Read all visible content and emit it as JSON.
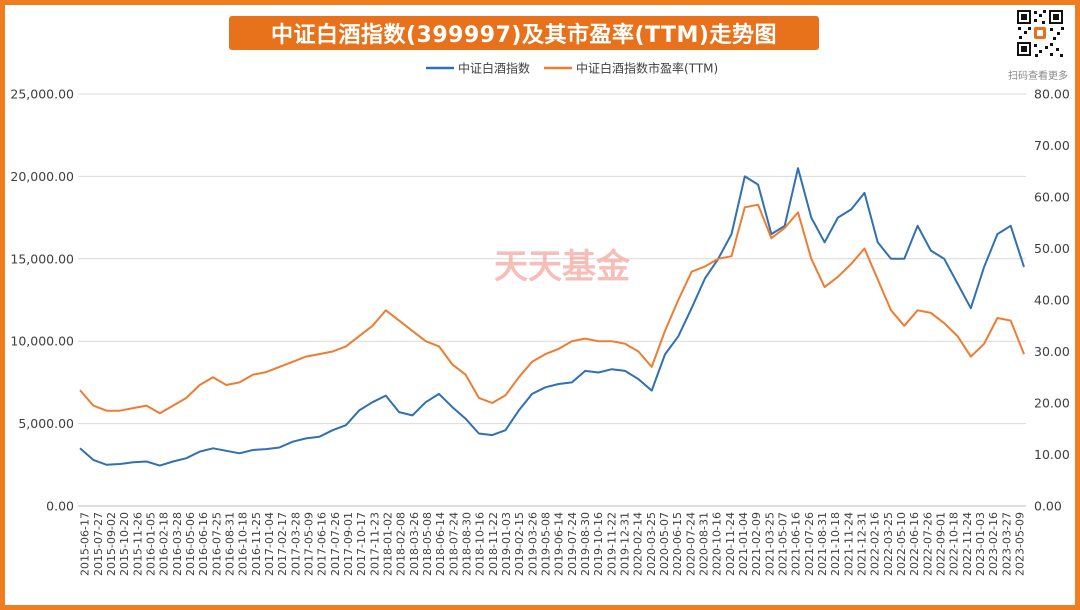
{
  "title": "中证白酒指数(399997)及其市盈率(TTM)走势图",
  "watermark": "天天基金",
  "qr": {
    "caption": "扫码查看更多",
    "icon": "qr-code-icon"
  },
  "colors": {
    "frame": "#f07e21",
    "banner": "#e8711c",
    "series1": "#3070b3",
    "series2": "#ee7d31",
    "grid": "#d9d9d9"
  },
  "chart_data": {
    "type": "line",
    "title": "中证白酒指数(399997)及其市盈率(TTM)走势图",
    "legend_position": "top",
    "grid": true,
    "x_tick_labels": [
      "2015-06-17",
      "2015-07-27",
      "2015-09-02",
      "2015-10-20",
      "2015-11-26",
      "2016-01-05",
      "2016-02-18",
      "2016-03-28",
      "2016-05-06",
      "2016-06-16",
      "2016-07-25",
      "2016-08-31",
      "2016-10-18",
      "2016-11-25",
      "2017-01-04",
      "2017-02-17",
      "2017-03-28",
      "2017-05-09",
      "2017-06-16",
      "2017-07-26",
      "2017-09-01",
      "2017-10-17",
      "2017-11-23",
      "2018-01-02",
      "2018-02-08",
      "2018-03-26",
      "2018-05-08",
      "2018-06-14",
      "2018-07-24",
      "2018-08-30",
      "2018-10-16",
      "2018-11-22",
      "2019-01-03",
      "2019-02-15",
      "2019-03-26",
      "2019-05-08",
      "2019-06-14",
      "2019-07-24",
      "2019-08-30",
      "2019-10-16",
      "2019-11-22",
      "2019-12-31",
      "2020-02-14",
      "2020-03-25",
      "2020-05-07",
      "2020-06-15",
      "2020-07-24",
      "2020-08-31",
      "2020-10-16",
      "2020-11-24",
      "2021-01-04",
      "2021-02-09",
      "2021-03-25",
      "2021-05-07",
      "2021-06-16",
      "2021-07-26",
      "2021-08-31",
      "2021-10-18",
      "2021-11-24",
      "2021-12-31",
      "2022-02-16",
      "2022-03-25",
      "2022-05-10",
      "2022-06-16",
      "2022-07-26",
      "2022-09-01",
      "2022-10-18",
      "2022-11-24",
      "2023-01-03",
      "2023-02-16",
      "2023-03-27",
      "2023-05-09"
    ],
    "y_left": {
      "ylim": [
        0,
        25000
      ],
      "ticks": [
        "0.00",
        "5,000.00",
        "10,000.00",
        "15,000.00",
        "20,000.00",
        "25,000.00"
      ]
    },
    "y_right": {
      "ylim": [
        0,
        80
      ],
      "ticks": [
        "0.00",
        "10.00",
        "20.00",
        "30.00",
        "40.00",
        "50.00",
        "60.00",
        "70.00",
        "80.00"
      ]
    },
    "series": [
      {
        "name": "中证白酒指数",
        "axis": "left",
        "x": [
          "2015-06-17",
          "2015-07-27",
          "2015-09-02",
          "2015-10-20",
          "2015-11-26",
          "2016-01-05",
          "2016-02-18",
          "2016-03-28",
          "2016-05-06",
          "2016-06-16",
          "2016-07-25",
          "2016-08-31",
          "2016-10-18",
          "2016-11-25",
          "2017-01-04",
          "2017-02-17",
          "2017-03-28",
          "2017-05-09",
          "2017-06-16",
          "2017-07-26",
          "2017-09-01",
          "2017-10-17",
          "2017-11-23",
          "2018-01-02",
          "2018-02-08",
          "2018-03-26",
          "2018-05-08",
          "2018-06-14",
          "2018-07-24",
          "2018-08-30",
          "2018-10-16",
          "2018-11-22",
          "2019-01-03",
          "2019-02-15",
          "2019-03-26",
          "2019-05-08",
          "2019-06-14",
          "2019-07-24",
          "2019-08-30",
          "2019-10-16",
          "2019-11-22",
          "2019-12-31",
          "2020-02-14",
          "2020-03-25",
          "2020-05-07",
          "2020-06-15",
          "2020-07-24",
          "2020-08-31",
          "2020-10-16",
          "2020-11-24",
          "2021-01-04",
          "2021-02-09",
          "2021-03-25",
          "2021-05-07",
          "2021-06-16",
          "2021-07-26",
          "2021-08-31",
          "2021-10-18",
          "2021-11-24",
          "2021-12-31",
          "2022-02-16",
          "2022-03-25",
          "2022-05-10",
          "2022-06-16",
          "2022-07-26",
          "2022-09-01",
          "2022-10-18",
          "2022-11-24",
          "2023-01-03",
          "2023-02-16",
          "2023-03-27",
          "2023-05-09"
        ],
        "values": [
          3500,
          2800,
          2500,
          2550,
          2650,
          2700,
          2450,
          2700,
          2900,
          3300,
          3500,
          3350,
          3200,
          3400,
          3450,
          3550,
          3900,
          4100,
          4200,
          4600,
          4900,
          5800,
          6300,
          6700,
          5700,
          5500,
          6300,
          6800,
          6000,
          5300,
          4400,
          4300,
          4600,
          5800,
          6800,
          7200,
          7400,
          7500,
          8200,
          8100,
          8300,
          8200,
          7700,
          7000,
          9200,
          10300,
          12000,
          13800,
          15000,
          16500,
          20000,
          19500,
          16500,
          17000,
          20500,
          17500,
          16000,
          17500,
          18000,
          19000,
          16000,
          15000,
          15000,
          17000,
          15500,
          15000,
          13500,
          12000,
          14500,
          16500,
          17000,
          14500
        ]
      },
      {
        "name": "中证白酒指数市盈率(TTM)",
        "axis": "right",
        "x": [
          "2015-06-17",
          "2015-07-27",
          "2015-09-02",
          "2015-10-20",
          "2015-11-26",
          "2016-01-05",
          "2016-02-18",
          "2016-03-28",
          "2016-05-06",
          "2016-06-16",
          "2016-07-25",
          "2016-08-31",
          "2016-10-18",
          "2016-11-25",
          "2017-01-04",
          "2017-02-17",
          "2017-03-28",
          "2017-05-09",
          "2017-06-16",
          "2017-07-26",
          "2017-09-01",
          "2017-10-17",
          "2017-11-23",
          "2018-01-02",
          "2018-02-08",
          "2018-03-26",
          "2018-05-08",
          "2018-06-14",
          "2018-07-24",
          "2018-08-30",
          "2018-10-16",
          "2018-11-22",
          "2019-01-03",
          "2019-02-15",
          "2019-03-26",
          "2019-05-08",
          "2019-06-14",
          "2019-07-24",
          "2019-08-30",
          "2019-10-16",
          "2019-11-22",
          "2019-12-31",
          "2020-02-14",
          "2020-03-25",
          "2020-05-07",
          "2020-06-15",
          "2020-07-24",
          "2020-08-31",
          "2020-10-16",
          "2020-11-24",
          "2021-01-04",
          "2021-02-09",
          "2021-03-25",
          "2021-05-07",
          "2021-06-16",
          "2021-07-26",
          "2021-08-31",
          "2021-10-18",
          "2021-11-24",
          "2021-12-31",
          "2022-02-16",
          "2022-03-25",
          "2022-05-10",
          "2022-06-16",
          "2022-07-26",
          "2022-09-01",
          "2022-10-18",
          "2022-11-24",
          "2023-01-03",
          "2023-02-16",
          "2023-03-27",
          "2023-05-09"
        ],
        "values": [
          22.5,
          19.5,
          18.5,
          18.5,
          19.0,
          19.5,
          18.0,
          19.5,
          21.0,
          23.5,
          25.0,
          23.5,
          24.0,
          25.5,
          26.0,
          27.0,
          28.0,
          29.0,
          29.5,
          30.0,
          31.0,
          33.0,
          35.0,
          38.0,
          36.0,
          34.0,
          32.0,
          31.0,
          27.5,
          25.5,
          21.0,
          20.0,
          21.5,
          25.0,
          28.0,
          29.5,
          30.5,
          32.0,
          32.5,
          32.0,
          32.0,
          31.5,
          30.0,
          27.0,
          34.0,
          40.0,
          45.5,
          46.5,
          48.0,
          48.5,
          58.0,
          58.5,
          52.0,
          54.0,
          57.0,
          48.0,
          42.5,
          44.5,
          47.0,
          50.0,
          44.0,
          38.0,
          35.0,
          38.0,
          37.5,
          35.5,
          33.0,
          29.0,
          31.5,
          36.5,
          36.0,
          29.5
        ]
      }
    ]
  }
}
